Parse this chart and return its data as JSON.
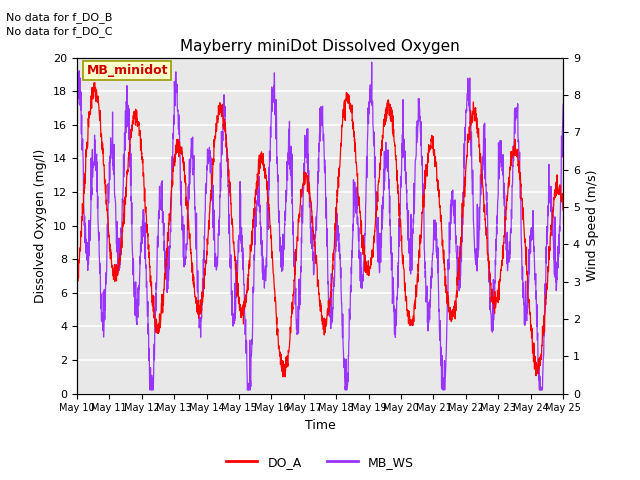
{
  "title": "Mayberry miniDot Dissolved Oxygen",
  "xlabel": "Time",
  "ylabel_left": "Dissolved Oxygen (mg/l)",
  "ylabel_right": "Wind Speed (m/s)",
  "ylim_left": [
    0,
    20
  ],
  "ylim_right": [
    0.0,
    9.0
  ],
  "yticks_left": [
    0,
    2,
    4,
    6,
    8,
    10,
    12,
    14,
    16,
    18,
    20
  ],
  "yticks_right": [
    0.0,
    1.0,
    2.0,
    3.0,
    4.0,
    5.0,
    6.0,
    7.0,
    8.0,
    9.0
  ],
  "xtick_labels": [
    "May 10",
    "May 11",
    "May 12",
    "May 13",
    "May 14",
    "May 15",
    "May 16",
    "May 17",
    "May 18",
    "May 19",
    "May 20",
    "May 21",
    "May 22",
    "May 23",
    "May 24",
    "May 25"
  ],
  "color_DO": "#ff0000",
  "color_WS": "#9933ff",
  "legend_box_label": "MB_minidot",
  "legend_box_color": "#ffffcc",
  "legend_box_edge": "#999900",
  "note1": "No data for f_DO_B",
  "note2": "No data for f_DO_C",
  "fig_bg_color": "#ffffff",
  "plot_bg_color": "#e8e8e8",
  "grid_color": "#ffffff",
  "title_fontsize": 11,
  "label_fontsize": 9,
  "tick_fontsize": 8,
  "note_fontsize": 8,
  "legend_fontsize": 9
}
